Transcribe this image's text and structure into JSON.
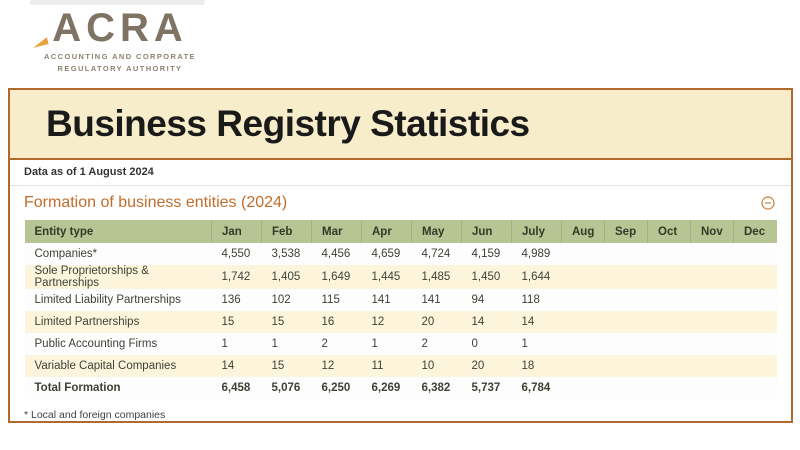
{
  "logo": {
    "text": "ACRA",
    "subtext_line1": "Accounting And Corporate",
    "subtext_line2": "Regulatory Authority"
  },
  "page": {
    "title": "Business Registry Statistics",
    "data_as_of": "Data as of 1 August 2024"
  },
  "section": {
    "title": "Formation of business entities (2024)",
    "collapse_icon": "minus-circle"
  },
  "table": {
    "columns": [
      "Entity type",
      "Jan",
      "Feb",
      "Mar",
      "Apr",
      "May",
      "Jun",
      "July",
      "Aug",
      "Sep",
      "Oct",
      "Nov",
      "Dec"
    ],
    "rows": [
      {
        "label": "Companies*",
        "values": [
          "4,550",
          "3,538",
          "4,456",
          "4,659",
          "4,724",
          "4,159",
          "4,989",
          "",
          "",
          "",
          "",
          ""
        ],
        "bold": false
      },
      {
        "label": "Sole Proprietorships & Partnerships",
        "values": [
          "1,742",
          "1,405",
          "1,649",
          "1,445",
          "1,485",
          "1,450",
          "1,644",
          "",
          "",
          "",
          "",
          ""
        ],
        "bold": false
      },
      {
        "label": "Limited Liability Partnerships",
        "values": [
          "136",
          "102",
          "115",
          "141",
          "141",
          "94",
          "118",
          "",
          "",
          "",
          "",
          ""
        ],
        "bold": false
      },
      {
        "label": "Limited Partnerships",
        "values": [
          "15",
          "15",
          "16",
          "12",
          "20",
          "14",
          "14",
          "",
          "",
          "",
          "",
          ""
        ],
        "bold": false
      },
      {
        "label": "Public Accounting Firms",
        "values": [
          "1",
          "1",
          "2",
          "1",
          "2",
          "0",
          "1",
          "",
          "",
          "",
          "",
          ""
        ],
        "bold": false
      },
      {
        "label": "Variable Capital Companies",
        "values": [
          "14",
          "15",
          "12",
          "11",
          "10",
          "20",
          "18",
          "",
          "",
          "",
          "",
          ""
        ],
        "bold": false
      },
      {
        "label": "Total Formation",
        "values": [
          "6,458",
          "5,076",
          "6,250",
          "6,269",
          "6,382",
          "5,737",
          "6,784",
          "",
          "",
          "",
          "",
          ""
        ],
        "bold": true
      }
    ],
    "footnote": "* Local and foreign companies"
  },
  "colors": {
    "accent_border": "#b2692e",
    "banner_bg": "#f7edca",
    "table_header_bg": "#b7c494",
    "row_alt_bg": "#fcf5dc",
    "section_title": "#bf6d2d",
    "logo_taupe": "#7f7463",
    "logo_accent_orange": "#e8a33c"
  }
}
